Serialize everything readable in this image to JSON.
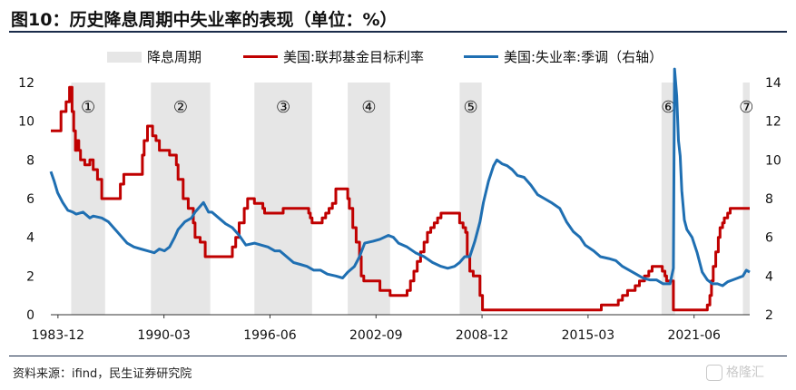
{
  "title": "图10：历史降息周期中失业率的表现（单位：%）",
  "source": "资料来源：ifind，民生证券研究院",
  "watermark": "格隆汇",
  "colors": {
    "band": "#e6e6e6",
    "rate": "#c00000",
    "unemployment": "#1f6fb2"
  },
  "chart_data": {
    "type": "line",
    "legend": [
      "降息周期",
      "美国:联邦基金目标利率",
      "美国:失业率:季调（右轴）"
    ],
    "x_range": [
      1983.5,
      2024.7
    ],
    "x_ticks": [
      {
        "x": 1983.92,
        "label": "1983-12"
      },
      {
        "x": 1990.17,
        "label": "1990-03"
      },
      {
        "x": 1996.42,
        "label": "1996-06"
      },
      {
        "x": 2002.67,
        "label": "2002-09"
      },
      {
        "x": 2008.92,
        "label": "2008-12"
      },
      {
        "x": 2015.17,
        "label": "2015-03"
      },
      {
        "x": 2021.42,
        "label": "2021-06"
      }
    ],
    "y_left": {
      "min": 0,
      "max": 12,
      "ticks": [
        0,
        2,
        4,
        6,
        8,
        10,
        12
      ]
    },
    "y_right": {
      "min": 2,
      "max": 14,
      "ticks": [
        2,
        4,
        6,
        8,
        10,
        12,
        14
      ]
    },
    "cut_cycles": [
      {
        "label": "①",
        "start": 1984.7,
        "end": 1986.7
      },
      {
        "label": "②",
        "start": 1989.4,
        "end": 1992.9
      },
      {
        "label": "③",
        "start": 1995.5,
        "end": 1998.9
      },
      {
        "label": "④",
        "start": 2001.0,
        "end": 2003.5
      },
      {
        "label": "⑤",
        "start": 2007.6,
        "end": 2008.9
      },
      {
        "label": "⑥",
        "start": 2019.5,
        "end": 2020.3
      },
      {
        "label": "⑦",
        "start": 2024.3,
        "end": 2024.7
      }
    ],
    "series": [
      {
        "name": "美国:联邦基金目标利率",
        "axis": "left",
        "step": true,
        "points": [
          [
            1983.5,
            9.5
          ],
          [
            1984.0,
            9.5
          ],
          [
            1984.1,
            10.5
          ],
          [
            1984.4,
            11.0
          ],
          [
            1984.6,
            11.75
          ],
          [
            1984.75,
            10.5
          ],
          [
            1984.85,
            9.5
          ],
          [
            1984.95,
            8.5
          ],
          [
            1985.05,
            9.0
          ],
          [
            1985.15,
            8.5
          ],
          [
            1985.25,
            8.0
          ],
          [
            1985.5,
            7.75
          ],
          [
            1985.8,
            8.0
          ],
          [
            1986.0,
            7.5
          ],
          [
            1986.25,
            7.0
          ],
          [
            1986.5,
            6.0
          ],
          [
            1987.5,
            6.0
          ],
          [
            1987.6,
            6.75
          ],
          [
            1987.8,
            7.25
          ],
          [
            1988.7,
            7.25
          ],
          [
            1988.9,
            8.25
          ],
          [
            1989.0,
            9.0
          ],
          [
            1989.2,
            9.75
          ],
          [
            1989.5,
            9.25
          ],
          [
            1989.7,
            9.0
          ],
          [
            1989.9,
            8.5
          ],
          [
            1990.5,
            8.25
          ],
          [
            1990.9,
            7.75
          ],
          [
            1991.0,
            7.0
          ],
          [
            1991.3,
            6.0
          ],
          [
            1991.6,
            5.5
          ],
          [
            1991.9,
            4.75
          ],
          [
            1992.0,
            4.0
          ],
          [
            1992.3,
            3.75
          ],
          [
            1992.6,
            3.0
          ],
          [
            1994.0,
            3.0
          ],
          [
            1994.2,
            3.5
          ],
          [
            1994.4,
            4.0
          ],
          [
            1994.6,
            4.75
          ],
          [
            1994.9,
            5.5
          ],
          [
            1995.1,
            6.0
          ],
          [
            1995.5,
            5.75
          ],
          [
            1996.0,
            5.5
          ],
          [
            1996.1,
            5.25
          ],
          [
            1997.2,
            5.5
          ],
          [
            1998.7,
            5.25
          ],
          [
            1998.8,
            5.0
          ],
          [
            1998.9,
            4.75
          ],
          [
            1999.5,
            5.0
          ],
          [
            1999.7,
            5.25
          ],
          [
            1999.9,
            5.5
          ],
          [
            2000.1,
            5.75
          ],
          [
            2000.3,
            6.5
          ],
          [
            2001.0,
            6.0
          ],
          [
            2001.1,
            5.5
          ],
          [
            2001.3,
            4.5
          ],
          [
            2001.5,
            3.75
          ],
          [
            2001.7,
            3.0
          ],
          [
            2001.8,
            2.0
          ],
          [
            2001.95,
            1.75
          ],
          [
            2002.9,
            1.25
          ],
          [
            2003.5,
            1.0
          ],
          [
            2004.5,
            1.25
          ],
          [
            2004.7,
            1.75
          ],
          [
            2004.9,
            2.25
          ],
          [
            2005.1,
            2.75
          ],
          [
            2005.3,
            3.25
          ],
          [
            2005.5,
            3.75
          ],
          [
            2005.7,
            4.25
          ],
          [
            2005.9,
            4.5
          ],
          [
            2006.1,
            4.75
          ],
          [
            2006.3,
            5.0
          ],
          [
            2006.5,
            5.25
          ],
          [
            2007.6,
            4.75
          ],
          [
            2007.8,
            4.5
          ],
          [
            2007.95,
            4.25
          ],
          [
            2008.05,
            3.0
          ],
          [
            2008.2,
            2.25
          ],
          [
            2008.4,
            2.0
          ],
          [
            2008.8,
            1.0
          ],
          [
            2008.95,
            0.25
          ],
          [
            2015.95,
            0.5
          ],
          [
            2016.95,
            0.75
          ],
          [
            2017.2,
            1.0
          ],
          [
            2017.5,
            1.25
          ],
          [
            2017.95,
            1.5
          ],
          [
            2018.2,
            1.75
          ],
          [
            2018.5,
            2.0
          ],
          [
            2018.75,
            2.25
          ],
          [
            2018.95,
            2.5
          ],
          [
            2019.55,
            2.25
          ],
          [
            2019.7,
            2.0
          ],
          [
            2019.8,
            1.75
          ],
          [
            2020.2,
            0.25
          ],
          [
            2022.2,
            0.5
          ],
          [
            2022.35,
            1.0
          ],
          [
            2022.45,
            1.75
          ],
          [
            2022.55,
            2.5
          ],
          [
            2022.7,
            3.25
          ],
          [
            2022.85,
            4.0
          ],
          [
            2022.95,
            4.5
          ],
          [
            2023.1,
            4.75
          ],
          [
            2023.2,
            5.0
          ],
          [
            2023.4,
            5.25
          ],
          [
            2023.55,
            5.5
          ],
          [
            2024.7,
            5.5
          ]
        ]
      },
      {
        "name": "美国:失业率:季调（右轴）",
        "axis": "right",
        "step": false,
        "points": [
          [
            1983.5,
            9.4
          ],
          [
            1983.7,
            8.9
          ],
          [
            1983.9,
            8.3
          ],
          [
            1984.2,
            7.8
          ],
          [
            1984.5,
            7.4
          ],
          [
            1984.8,
            7.3
          ],
          [
            1985.0,
            7.2
          ],
          [
            1985.4,
            7.3
          ],
          [
            1985.8,
            7.0
          ],
          [
            1986.0,
            7.1
          ],
          [
            1986.5,
            7.0
          ],
          [
            1986.9,
            6.8
          ],
          [
            1987.3,
            6.4
          ],
          [
            1987.7,
            6.0
          ],
          [
            1988.0,
            5.7
          ],
          [
            1988.4,
            5.5
          ],
          [
            1988.8,
            5.4
          ],
          [
            1989.2,
            5.3
          ],
          [
            1989.6,
            5.2
          ],
          [
            1989.9,
            5.4
          ],
          [
            1990.2,
            5.3
          ],
          [
            1990.5,
            5.5
          ],
          [
            1990.8,
            6.0
          ],
          [
            1991.0,
            6.4
          ],
          [
            1991.4,
            6.8
          ],
          [
            1991.8,
            7.0
          ],
          [
            1992.0,
            7.3
          ],
          [
            1992.3,
            7.6
          ],
          [
            1992.5,
            7.8
          ],
          [
            1992.8,
            7.3
          ],
          [
            1993.0,
            7.3
          ],
          [
            1993.4,
            7.0
          ],
          [
            1993.8,
            6.7
          ],
          [
            1994.2,
            6.5
          ],
          [
            1994.6,
            6.1
          ],
          [
            1995.0,
            5.6
          ],
          [
            1995.5,
            5.7
          ],
          [
            1995.9,
            5.6
          ],
          [
            1996.3,
            5.5
          ],
          [
            1996.7,
            5.3
          ],
          [
            1997.0,
            5.3
          ],
          [
            1997.4,
            5.0
          ],
          [
            1997.8,
            4.7
          ],
          [
            1998.2,
            4.6
          ],
          [
            1998.6,
            4.5
          ],
          [
            1999.0,
            4.3
          ],
          [
            1999.4,
            4.3
          ],
          [
            1999.8,
            4.1
          ],
          [
            2000.3,
            4.0
          ],
          [
            2000.7,
            3.9
          ],
          [
            2001.0,
            4.2
          ],
          [
            2001.4,
            4.5
          ],
          [
            2001.7,
            5.0
          ],
          [
            2002.0,
            5.7
          ],
          [
            2002.5,
            5.8
          ],
          [
            2002.9,
            5.9
          ],
          [
            2003.4,
            6.1
          ],
          [
            2003.7,
            6.0
          ],
          [
            2004.0,
            5.7
          ],
          [
            2004.5,
            5.5
          ],
          [
            2005.0,
            5.2
          ],
          [
            2005.5,
            5.0
          ],
          [
            2006.0,
            4.7
          ],
          [
            2006.5,
            4.5
          ],
          [
            2006.9,
            4.4
          ],
          [
            2007.3,
            4.5
          ],
          [
            2007.6,
            4.7
          ],
          [
            2007.9,
            5.0
          ],
          [
            2008.2,
            5.0
          ],
          [
            2008.5,
            5.8
          ],
          [
            2008.8,
            6.8
          ],
          [
            2009.0,
            7.8
          ],
          [
            2009.3,
            8.9
          ],
          [
            2009.6,
            9.7
          ],
          [
            2009.8,
            10.0
          ],
          [
            2010.1,
            9.8
          ],
          [
            2010.4,
            9.7
          ],
          [
            2010.7,
            9.5
          ],
          [
            2011.0,
            9.2
          ],
          [
            2011.4,
            9.1
          ],
          [
            2011.8,
            8.7
          ],
          [
            2012.2,
            8.2
          ],
          [
            2012.6,
            8.0
          ],
          [
            2013.0,
            7.8
          ],
          [
            2013.5,
            7.5
          ],
          [
            2013.9,
            6.8
          ],
          [
            2014.3,
            6.3
          ],
          [
            2014.7,
            6.0
          ],
          [
            2015.0,
            5.6
          ],
          [
            2015.5,
            5.3
          ],
          [
            2015.9,
            5.0
          ],
          [
            2016.4,
            4.9
          ],
          [
            2016.8,
            4.8
          ],
          [
            2017.2,
            4.5
          ],
          [
            2017.6,
            4.3
          ],
          [
            2018.0,
            4.1
          ],
          [
            2018.4,
            3.9
          ],
          [
            2018.8,
            3.8
          ],
          [
            2019.2,
            3.8
          ],
          [
            2019.6,
            3.6
          ],
          [
            2020.0,
            3.6
          ],
          [
            2020.2,
            4.4
          ],
          [
            2020.27,
            14.7
          ],
          [
            2020.4,
            13.3
          ],
          [
            2020.5,
            11.0
          ],
          [
            2020.6,
            10.2
          ],
          [
            2020.7,
            8.4
          ],
          [
            2020.85,
            6.9
          ],
          [
            2021.0,
            6.4
          ],
          [
            2021.3,
            6.0
          ],
          [
            2021.6,
            5.2
          ],
          [
            2021.9,
            4.2
          ],
          [
            2022.2,
            3.8
          ],
          [
            2022.5,
            3.6
          ],
          [
            2022.8,
            3.6
          ],
          [
            2023.1,
            3.5
          ],
          [
            2023.4,
            3.7
          ],
          [
            2023.7,
            3.8
          ],
          [
            2024.0,
            3.9
          ],
          [
            2024.3,
            4.0
          ],
          [
            2024.5,
            4.3
          ],
          [
            2024.7,
            4.2
          ]
        ]
      }
    ]
  }
}
